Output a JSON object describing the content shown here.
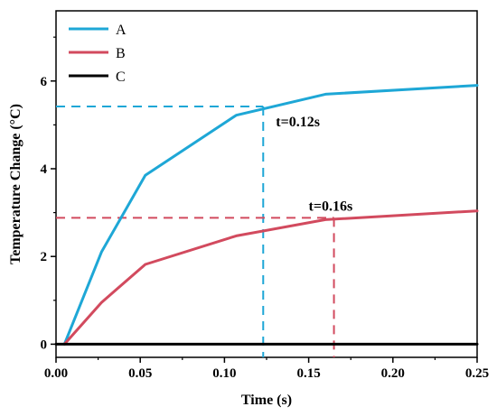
{
  "chart_data": {
    "type": "line",
    "title": "",
    "xlabel": "Time (s)",
    "ylabel": "Temperature Change (°C)",
    "xlim": [
      0,
      0.25
    ],
    "ylim": [
      -0.3,
      7.6
    ],
    "xticks": [
      0.0,
      0.05,
      0.1,
      0.15,
      0.2,
      0.25
    ],
    "xtick_labels": [
      "0.00",
      "0.05",
      "0.10",
      "0.15",
      "0.20",
      "0.25"
    ],
    "yticks": [
      0,
      2,
      4,
      6
    ],
    "ytick_labels": [
      "0",
      "2",
      "4",
      "6"
    ],
    "grid": false,
    "legend": {
      "position": "top-left"
    },
    "series": [
      {
        "name": "A",
        "color": "#1ea7d6",
        "x": [
          0.005,
          0.027,
          0.053,
          0.107,
          0.16,
          0.25
        ],
        "y": [
          0,
          2.1,
          3.85,
          5.22,
          5.7,
          5.9
        ]
      },
      {
        "name": "B",
        "color": "#d24a5e",
        "x": [
          0.005,
          0.027,
          0.053,
          0.107,
          0.16,
          0.25
        ],
        "y": [
          0,
          0.95,
          1.82,
          2.47,
          2.84,
          3.04
        ]
      },
      {
        "name": "C",
        "color": "#000000",
        "x": [
          0,
          0.25
        ],
        "y": [
          0,
          0
        ]
      }
    ],
    "annotations": [
      {
        "text": "t=0.12s",
        "color": "#000000",
        "x": 0.123,
        "y": 5.42,
        "series": "A"
      },
      {
        "text": "t=0.16s",
        "color": "#d24a5e",
        "x": 0.165,
        "y": 2.88,
        "series": "B"
      }
    ]
  }
}
